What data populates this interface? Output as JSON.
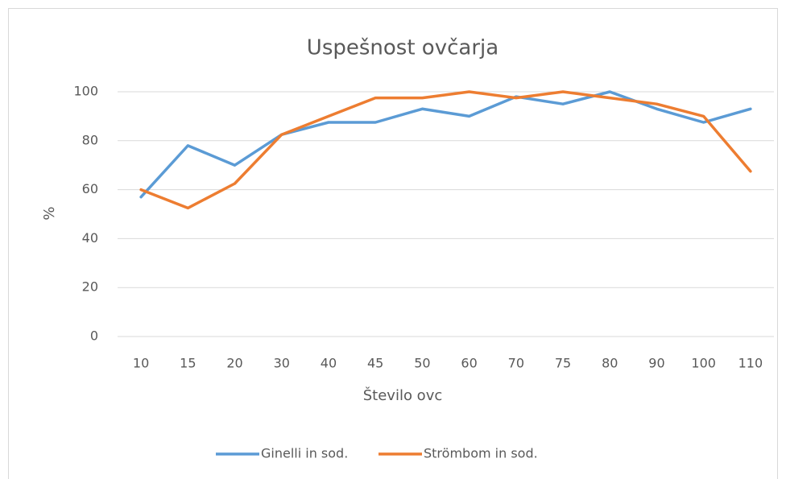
{
  "chart_data": {
    "type": "line",
    "title": "Uspešnost ovčarja",
    "x_label": "Število ovc",
    "y_label": "%",
    "categories": [
      "10",
      "15",
      "20",
      "30",
      "40",
      "45",
      "50",
      "60",
      "70",
      "75",
      "80",
      "90",
      "100",
      "110"
    ],
    "series": [
      {
        "name": "Ginelli in sod.",
        "color": "#5b9bd5",
        "values": [
          57,
          78,
          70,
          82.5,
          87.5,
          87.5,
          93,
          90,
          98,
          95,
          100,
          93,
          87.5,
          93
        ]
      },
      {
        "name": "Strömbom in sod.",
        "color": "#ed7d31",
        "values": [
          60,
          52.5,
          62.5,
          82.5,
          90,
          97.5,
          97.5,
          100,
          97.5,
          100,
          97.5,
          95,
          90,
          67.5
        ]
      }
    ],
    "ylim": [
      0,
      100
    ],
    "yticks": [
      0,
      20,
      40,
      60,
      80,
      100
    ],
    "grid": true,
    "legend": "bottom"
  }
}
